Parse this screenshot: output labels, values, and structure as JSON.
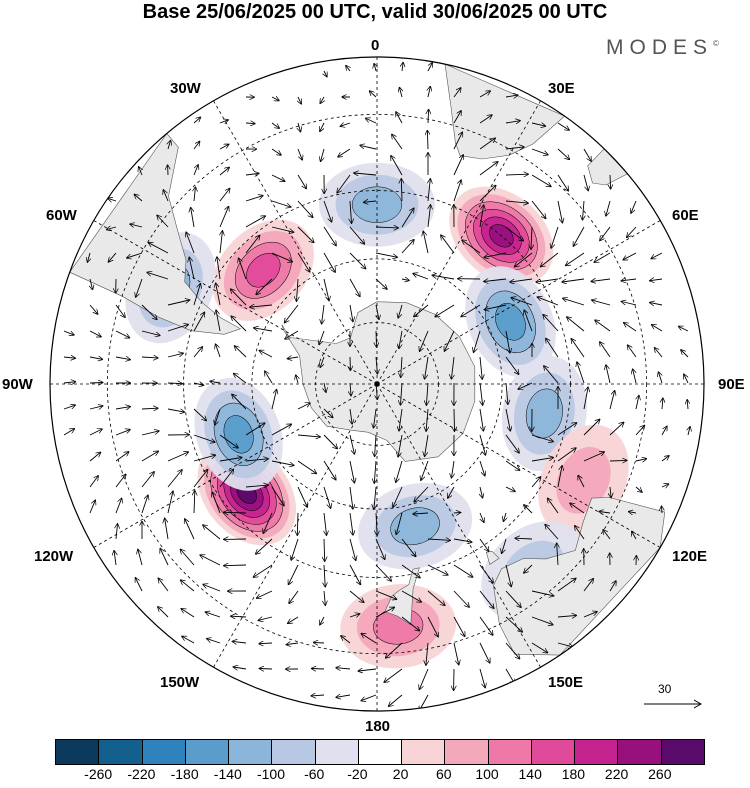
{
  "title": "Base 25/06/2025 00 UTC, valid 30/06/2025 00 UTC",
  "logo": "MODES",
  "logo_mark": "©",
  "longitude_labels": {
    "lon_0": "0",
    "lon_30e": "30E",
    "lon_60e": "60E",
    "lon_90e": "90E",
    "lon_120e": "120E",
    "lon_150e": "150E",
    "lon_180": "180",
    "lon_150w": "150W",
    "lon_120w": "120W",
    "lon_90w": "90W",
    "lon_60w": "60W",
    "lon_30w": "30W"
  },
  "reference_vector": {
    "value": "30"
  },
  "colorbar": {
    "colors": [
      "#0b3a5c",
      "#13608f",
      "#2f82bb",
      "#5a9ccb",
      "#8bb5d9",
      "#b9c8e2",
      "#e0e0ee",
      "#ffffff",
      "#f8d4d6",
      "#f3a8bb",
      "#ee78a8",
      "#e04a9a",
      "#c4228e",
      "#96117d",
      "#5a0a6a"
    ],
    "tick_labels": [
      "-260",
      "-220",
      "-180",
      "-140",
      "-100",
      "-60",
      "-20",
      "20",
      "60",
      "100",
      "140",
      "180",
      "220",
      "260"
    ]
  },
  "map": {
    "projection": "south-polar-stereographic",
    "land_color": "#e9e9e9",
    "anomaly_centers": [
      {
        "lon_deg": -130,
        "lat_deg": -50,
        "value": 260,
        "label": "strong positive"
      },
      {
        "lon_deg": 40,
        "lat_deg": -45,
        "value": 220,
        "label": "positive"
      },
      {
        "lon_deg": -45,
        "lat_deg": -52,
        "value": 140,
        "label": "positive"
      },
      {
        "lon_deg": 65,
        "lat_deg": -55,
        "value": -160,
        "label": "negative"
      },
      {
        "lon_deg": -110,
        "lat_deg": -55,
        "value": -160,
        "label": "negative"
      },
      {
        "lon_deg": 0,
        "lat_deg": -48,
        "value": -120,
        "label": "negative"
      },
      {
        "lon_deg": -65,
        "lat_deg": -38,
        "value": -100,
        "label": "negative"
      },
      {
        "lon_deg": 165,
        "lat_deg": -55,
        "value": -100,
        "label": "negative"
      },
      {
        "lon_deg": 100,
        "lat_deg": -50,
        "value": -100,
        "label": "negative"
      },
      {
        "lon_deg": 175,
        "lat_deg": -35,
        "value": 100,
        "label": "positive"
      },
      {
        "lon_deg": 115,
        "lat_deg": -38,
        "value": 60,
        "label": "positive"
      },
      {
        "lon_deg": 140,
        "lat_deg": -35,
        "value": -80,
        "label": "negative"
      }
    ]
  }
}
